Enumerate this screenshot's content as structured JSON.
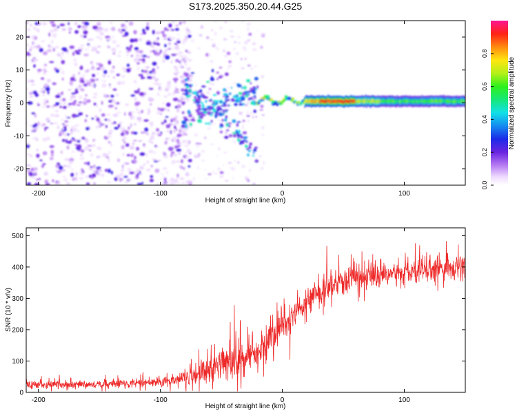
{
  "figure_title": "S173.2025.350.20.44.G25",
  "chart_data": [
    {
      "type": "heatmap",
      "title": "S173.2025.350.20.44.G25",
      "xlabel": "Height of straight line (km)",
      "ylabel": "Frequency (Hz)",
      "xlim": [
        -210,
        150
      ],
      "ylim": [
        -25,
        25
      ],
      "xticks": [
        -200,
        -100,
        0,
        100
      ],
      "yticks": [
        -20,
        -10,
        0,
        10,
        20
      ],
      "xtick_labels": [
        "-200",
        "-100",
        "0",
        "100"
      ],
      "ytick_labels": [
        "-20",
        "-10",
        "0",
        "10",
        "20"
      ],
      "colorbar": {
        "label": "Normalized spectral amplitude",
        "range": [
          0,
          1
        ],
        "ticks": [
          0.0,
          0.2,
          0.4,
          0.6,
          0.8
        ],
        "tick_labels": [
          "0.0",
          "0.2",
          "0.4",
          "0.6",
          "0.8"
        ],
        "colormap": "rainbow (white-violet-purple-blue-cyan-green-yellow-orange-red-magenta)"
      },
      "description_regions": [
        {
          "x_range": [
            -210,
            -80
          ],
          "freq_range": [
            -25,
            25
          ],
          "amplitude": "low, scattered noise (0.05-0.25)"
        },
        {
          "x_range": [
            -80,
            -20
          ],
          "freq_range": [
            -12,
            6
          ],
          "amplitude": "patchy 0.2-0.5, X-shaped pattern"
        },
        {
          "x_range": [
            -20,
            20
          ],
          "freq_range": [
            -1,
            2
          ],
          "amplitude": "line emerging 0.3-0.9"
        },
        {
          "x_range": [
            20,
            60
          ],
          "freq_range": [
            0,
            1
          ],
          "amplitude": "strong line ~0.9"
        },
        {
          "x_range": [
            60,
            150
          ],
          "freq_range": [
            -0.5,
            1.5
          ],
          "amplitude": "line 0.45-0.7"
        }
      ]
    },
    {
      "type": "line",
      "xlabel": "Height of straight line (km)",
      "ylabel": "SNR (10 * v/v)",
      "xlim": [
        -210,
        150
      ],
      "ylim": [
        0,
        525
      ],
      "xticks": [
        -200,
        -100,
        0,
        100
      ],
      "yticks": [
        0,
        100,
        200,
        300,
        400,
        500
      ],
      "xtick_labels": [
        "-200",
        "-100",
        "0",
        "100"
      ],
      "ytick_labels": [
        "0",
        "100",
        "200",
        "300",
        "400",
        "500"
      ],
      "series": [
        {
          "name": "SNR",
          "color": "#ee2a2a",
          "trend": {
            "x": [
              -210,
              -150,
              -110,
              -90,
              -80,
              -70,
              -60,
              -50,
              -40,
              -30,
              -20,
              -10,
              0,
              10,
              20,
              30,
              40,
              50,
              60,
              70,
              80,
              90,
              100,
              110,
              120,
              130,
              140,
              150
            ],
            "y": [
              25,
              25,
              30,
              35,
              45,
              60,
              75,
              90,
              100,
              110,
              125,
              165,
              215,
              255,
              290,
              320,
              340,
              355,
              365,
              370,
              370,
              375,
              380,
              385,
              390,
              395,
              395,
              400
            ]
          },
          "spread": {
            "x": [
              -210,
              -100,
              -80,
              -60,
              -40,
              -20,
              0,
              20,
              60,
              100,
              150
            ],
            "y": [
              12,
              14,
              25,
              45,
              55,
              55,
              50,
              45,
              40,
              38,
              40
            ]
          }
        }
      ]
    }
  ]
}
